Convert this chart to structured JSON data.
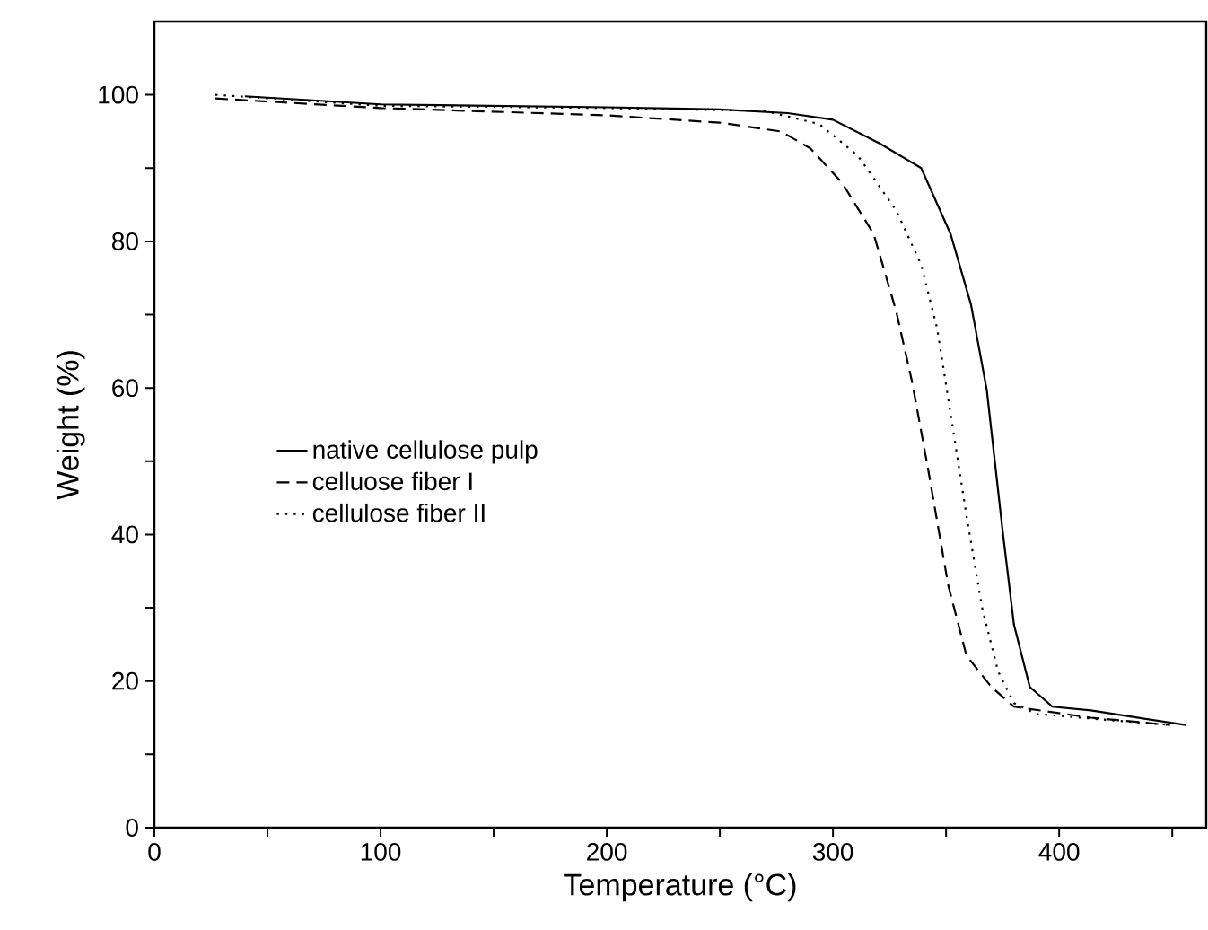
{
  "chart_data": {
    "type": "line",
    "xlabel": "Temperature (°C)",
    "ylabel": "Weight (%)",
    "xlim": [
      0,
      465
    ],
    "ylim": [
      0,
      110
    ],
    "xticks": [
      0,
      {
        "value": 50,
        "label": null
      },
      100,
      {
        "value": 150,
        "label": null
      },
      200,
      {
        "value": 250,
        "label": null
      },
      300,
      {
        "value": 350,
        "label": null
      },
      400,
      {
        "value": 450,
        "label": null
      }
    ],
    "yticks": [
      0,
      {
        "value": 10,
        "label": null
      },
      20,
      {
        "value": 30,
        "label": null
      },
      40,
      {
        "value": 50,
        "label": null
      },
      60,
      {
        "value": 70,
        "label": null
      },
      80,
      {
        "value": 90,
        "label": null
      },
      100
    ],
    "legend": "left",
    "grid": false,
    "marker": "none",
    "series": [
      {
        "name": "native cellulose pulp",
        "color": "#000000",
        "line_style": "solid",
        "x": [
          40,
          100,
          200,
          250,
          280,
          300,
          321,
          339,
          352,
          361,
          368,
          375,
          380,
          387,
          397,
          414,
          456
        ],
        "values": [
          99.8,
          98.7,
          98.3,
          98,
          97.5,
          96.6,
          93.3,
          90,
          81,
          71.4,
          59.7,
          40.5,
          27.7,
          19.2,
          16.5,
          16,
          14
        ]
      },
      {
        "name": "celluose fiber I",
        "color": "#000000",
        "line_style": "dashed",
        "x": [
          27,
          100,
          200,
          250,
          277,
          290,
          304,
          318,
          328,
          335,
          342,
          351,
          359,
          370,
          380,
          414,
          449
        ],
        "values": [
          99.5,
          98.2,
          97.2,
          96.2,
          95,
          92.7,
          88,
          81,
          70.4,
          60.8,
          49,
          33,
          23.5,
          19.2,
          16.5,
          15,
          14
        ]
      },
      {
        "name": "cellulose fiber II",
        "color": "#000000",
        "line_style": "dotted",
        "x": [
          27,
          100,
          200,
          270,
          294,
          311,
          328,
          339,
          346,
          352,
          359,
          366,
          373,
          380,
          390,
          449
        ],
        "values": [
          100,
          98.5,
          98.2,
          97.8,
          96,
          91.7,
          84.2,
          76.8,
          68.2,
          56.5,
          42.6,
          29.9,
          21.3,
          17,
          15.5,
          14
        ]
      }
    ]
  }
}
